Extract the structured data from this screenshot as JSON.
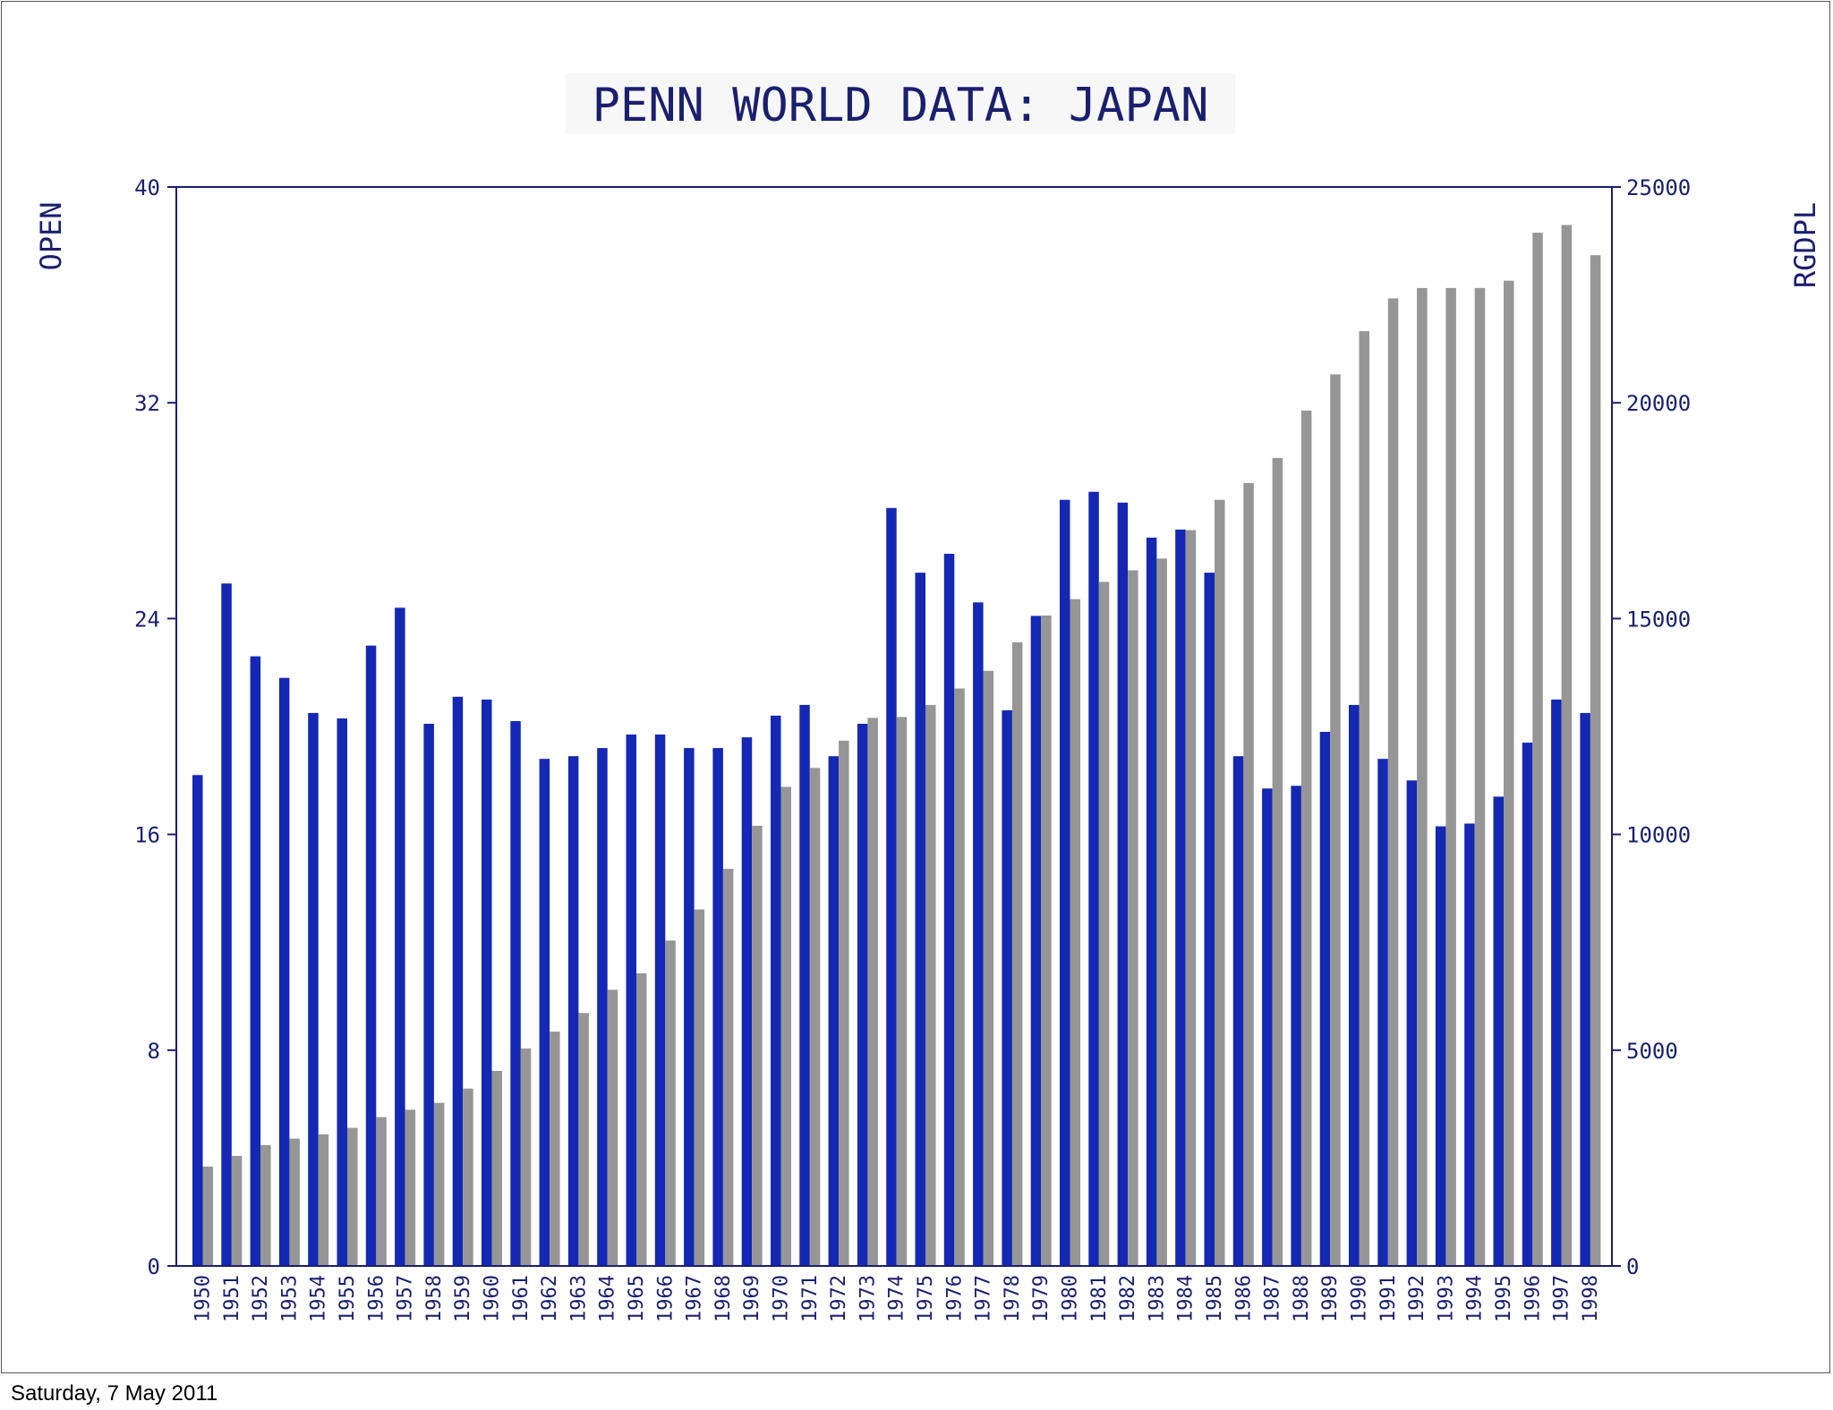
{
  "footer": {
    "date": "Saturday, 7 May 2011"
  },
  "chart_data": {
    "type": "bar",
    "title": "PENN WORLD DATA: JAPAN",
    "xlabel": "",
    "ylabel_left": "OPEN",
    "ylabel_right": "RGDPL",
    "ylim_left": [
      0,
      40
    ],
    "ylim_right": [
      0,
      25000
    ],
    "yticks_left": [
      "0",
      "8",
      "16",
      "24",
      "32",
      "40"
    ],
    "yticks_right": [
      "0",
      "5000",
      "10000",
      "15000",
      "20000",
      "25000"
    ],
    "categories": [
      "1950",
      "1951",
      "1952",
      "1953",
      "1954",
      "1955",
      "1956",
      "1957",
      "1958",
      "1959",
      "1960",
      "1961",
      "1962",
      "1963",
      "1964",
      "1965",
      "1966",
      "1967",
      "1968",
      "1969",
      "1970",
      "1971",
      "1972",
      "1973",
      "1974",
      "1975",
      "1976",
      "1977",
      "1978",
      "1979",
      "1980",
      "1981",
      "1982",
      "1983",
      "1984",
      "1985",
      "1986",
      "1987",
      "1988",
      "1989",
      "1990",
      "1991",
      "1992",
      "1993",
      "1994",
      "1995",
      "1996",
      "1997",
      "1998"
    ],
    "series": [
      {
        "name": "OPEN",
        "axis": "left",
        "color": "#1428b4",
        "values": [
          18.2,
          25.3,
          22.6,
          21.8,
          20.5,
          20.3,
          23.0,
          24.4,
          20.1,
          21.1,
          21.0,
          20.2,
          18.8,
          18.9,
          19.2,
          19.7,
          19.7,
          19.2,
          19.2,
          19.6,
          20.4,
          20.8,
          18.9,
          20.1,
          28.1,
          25.7,
          26.4,
          24.6,
          20.6,
          24.1,
          28.4,
          28.7,
          28.3,
          27.0,
          27.3,
          25.7,
          18.9,
          17.7,
          17.8,
          19.8,
          20.8,
          18.8,
          18.0,
          16.3,
          16.4,
          17.4,
          19.4,
          21.0,
          20.5
        ]
      },
      {
        "name": "RGDPL",
        "axis": "right",
        "color": "#969696",
        "values": [
          2300,
          2550,
          2800,
          2950,
          3050,
          3200,
          3450,
          3620,
          3780,
          4110,
          4520,
          5040,
          5430,
          5860,
          6400,
          6780,
          7540,
          8260,
          9200,
          10200,
          11100,
          11540,
          12170,
          12700,
          12720,
          13000,
          13380,
          13790,
          14450,
          15070,
          15450,
          15850,
          16120,
          16390,
          17050,
          17750,
          18140,
          18720,
          19820,
          20660,
          21660,
          22420,
          22660,
          22660,
          22660,
          22830,
          23940,
          24120,
          23420
        ]
      }
    ]
  }
}
